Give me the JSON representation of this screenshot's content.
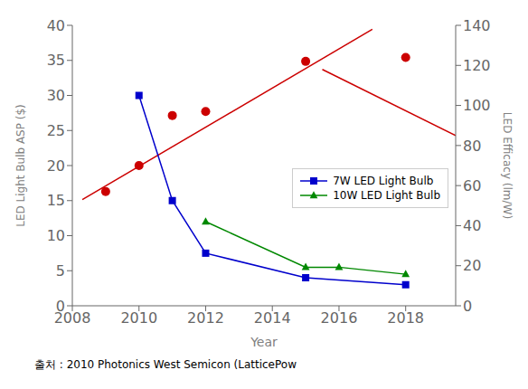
{
  "chart_data": {
    "type": "line",
    "xlabel": "Year",
    "ylabel": "LED Light Bulb ASP ($)",
    "y2label": "LED Efficacy (lm/W)",
    "annotation": "출처 : 2010 Photonics West Semicon (LatticePow",
    "xlim": [
      2008,
      2019.5
    ],
    "xticks": [
      2008,
      2010,
      2012,
      2014,
      2016,
      2018
    ],
    "ylim": [
      0,
      40
    ],
    "yticks": [
      0,
      5,
      10,
      15,
      20,
      25,
      30,
      35,
      40
    ],
    "y2lim": [
      0,
      140
    ],
    "y2ticks": [
      0,
      20,
      40,
      60,
      80,
      100,
      120,
      140
    ],
    "grid": false,
    "legend": "right",
    "series": [
      {
        "type": "scatter",
        "color": "#cc0000",
        "marker": "circle",
        "axis": "y2",
        "x": [
          2009,
          2010,
          2011,
          2012,
          2015,
          2018
        ],
        "values": [
          57,
          70,
          95,
          97,
          122,
          124
        ]
      },
      {
        "type": "line",
        "color": "#cc0000",
        "marker": "none",
        "axis": "y2",
        "x": [
          2008.3,
          2017.0
        ],
        "values": [
          53,
          138
        ]
      },
      {
        "type": "line",
        "color": "#cc0000",
        "marker": "none",
        "axis": "y2",
        "x": [
          2015.5,
          2019.5
        ],
        "values": [
          118,
          85
        ]
      },
      {
        "name": "7W LED Light Bulb",
        "type": "line",
        "color": "#0000cc",
        "marker": "square",
        "axis": "y",
        "x": [
          2010,
          2011,
          2012,
          2015,
          2018
        ],
        "values": [
          30,
          15,
          7.5,
          4,
          3
        ]
      },
      {
        "name": "10W LED Light Bulb",
        "type": "line",
        "color": "#008800",
        "marker": "triangle",
        "axis": "y",
        "x": [
          2012,
          2015,
          2016,
          2018
        ],
        "values": [
          12,
          5.5,
          5.5,
          4.5
        ]
      }
    ]
  }
}
